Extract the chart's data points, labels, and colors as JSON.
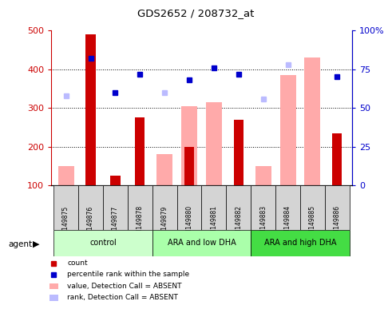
{
  "title": "GDS2652 / 208732_at",
  "samples": [
    "GSM149875",
    "GSM149876",
    "GSM149877",
    "GSM149878",
    "GSM149879",
    "GSM149880",
    "GSM149881",
    "GSM149882",
    "GSM149883",
    "GSM149884",
    "GSM149885",
    "GSM149886"
  ],
  "groups": [
    {
      "label": "control",
      "color": "#ccffcc",
      "start": 0,
      "end": 3
    },
    {
      "label": "ARA and low DHA",
      "color": "#aaffaa",
      "start": 4,
      "end": 7
    },
    {
      "label": "ARA and high DHA",
      "color": "#44dd44",
      "start": 8,
      "end": 11
    }
  ],
  "count_values": [
    null,
    490,
    125,
    275,
    null,
    200,
    null,
    270,
    null,
    null,
    null,
    235
  ],
  "count_color": "#cc0000",
  "percentile_values": [
    null,
    82,
    60,
    72,
    null,
    68,
    76,
    72,
    null,
    null,
    null,
    70
  ],
  "percentile_color": "#0000cc",
  "absent_value_values": [
    150,
    null,
    null,
    null,
    180,
    305,
    315,
    null,
    150,
    385,
    430,
    null
  ],
  "absent_value_color": "#ffaaaa",
  "absent_rank_values": [
    58,
    null,
    null,
    null,
    60,
    null,
    null,
    null,
    56,
    78,
    null,
    null
  ],
  "absent_rank_color": "#bbbbff",
  "ylim_left": [
    100,
    500
  ],
  "left_yticks": [
    100,
    200,
    300,
    400,
    500
  ],
  "ylim_right": [
    0,
    100
  ],
  "right_yticks": [
    0,
    25,
    50,
    75,
    100
  ],
  "right_tick_labels": [
    "0",
    "25",
    "50",
    "75",
    "100%"
  ],
  "bar_width": 0.5,
  "background_color": "#ffffff",
  "plot_bg_color": "#ffffff",
  "tick_label_color_left": "#cc0000",
  "tick_label_color_right": "#0000cc",
  "gridline_yticks": [
    200,
    300,
    400
  ]
}
